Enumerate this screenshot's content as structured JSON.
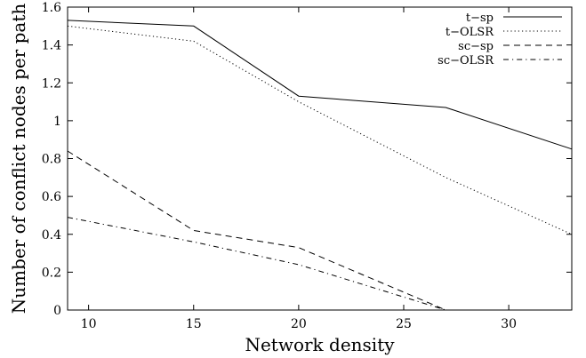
{
  "chart_data": {
    "type": "line",
    "xlabel": "Network density",
    "ylabel": "Number of conflict nodes per path",
    "xlim": [
      9,
      33
    ],
    "ylim": [
      0,
      1.6
    ],
    "x_ticks": [
      10,
      15,
      20,
      25,
      30
    ],
    "y_ticks": [
      0,
      0.2,
      0.4,
      0.6,
      0.8,
      1,
      1.2,
      1.4,
      1.6
    ],
    "x_tick_labels": [
      "10",
      "15",
      "20",
      "25",
      "30"
    ],
    "y_tick_labels": [
      "0",
      "0.2",
      "0.4",
      "0.6",
      "0.8",
      "1",
      "1.2",
      "1.4",
      "1.6"
    ],
    "grid": false,
    "legend_position": "top-right",
    "series": [
      {
        "name": "t−sp",
        "style": "solid",
        "x": [
          9,
          15,
          20,
          27,
          33
        ],
        "y": [
          1.53,
          1.5,
          1.13,
          1.07,
          0.85
        ]
      },
      {
        "name": "t−OLSR",
        "style": "dotted",
        "x": [
          9,
          15,
          20,
          27,
          33
        ],
        "y": [
          1.5,
          1.42,
          1.1,
          0.7,
          0.4
        ]
      },
      {
        "name": "sc−sp",
        "style": "dashed",
        "x": [
          9,
          15,
          20,
          27,
          33
        ],
        "y": [
          0.84,
          0.42,
          0.33,
          0.0,
          0.0
        ]
      },
      {
        "name": "sc−OLSR",
        "style": "dashdot",
        "x": [
          9,
          15,
          20,
          27,
          33
        ],
        "y": [
          0.49,
          0.36,
          0.24,
          0.0,
          0.0
        ]
      }
    ]
  }
}
